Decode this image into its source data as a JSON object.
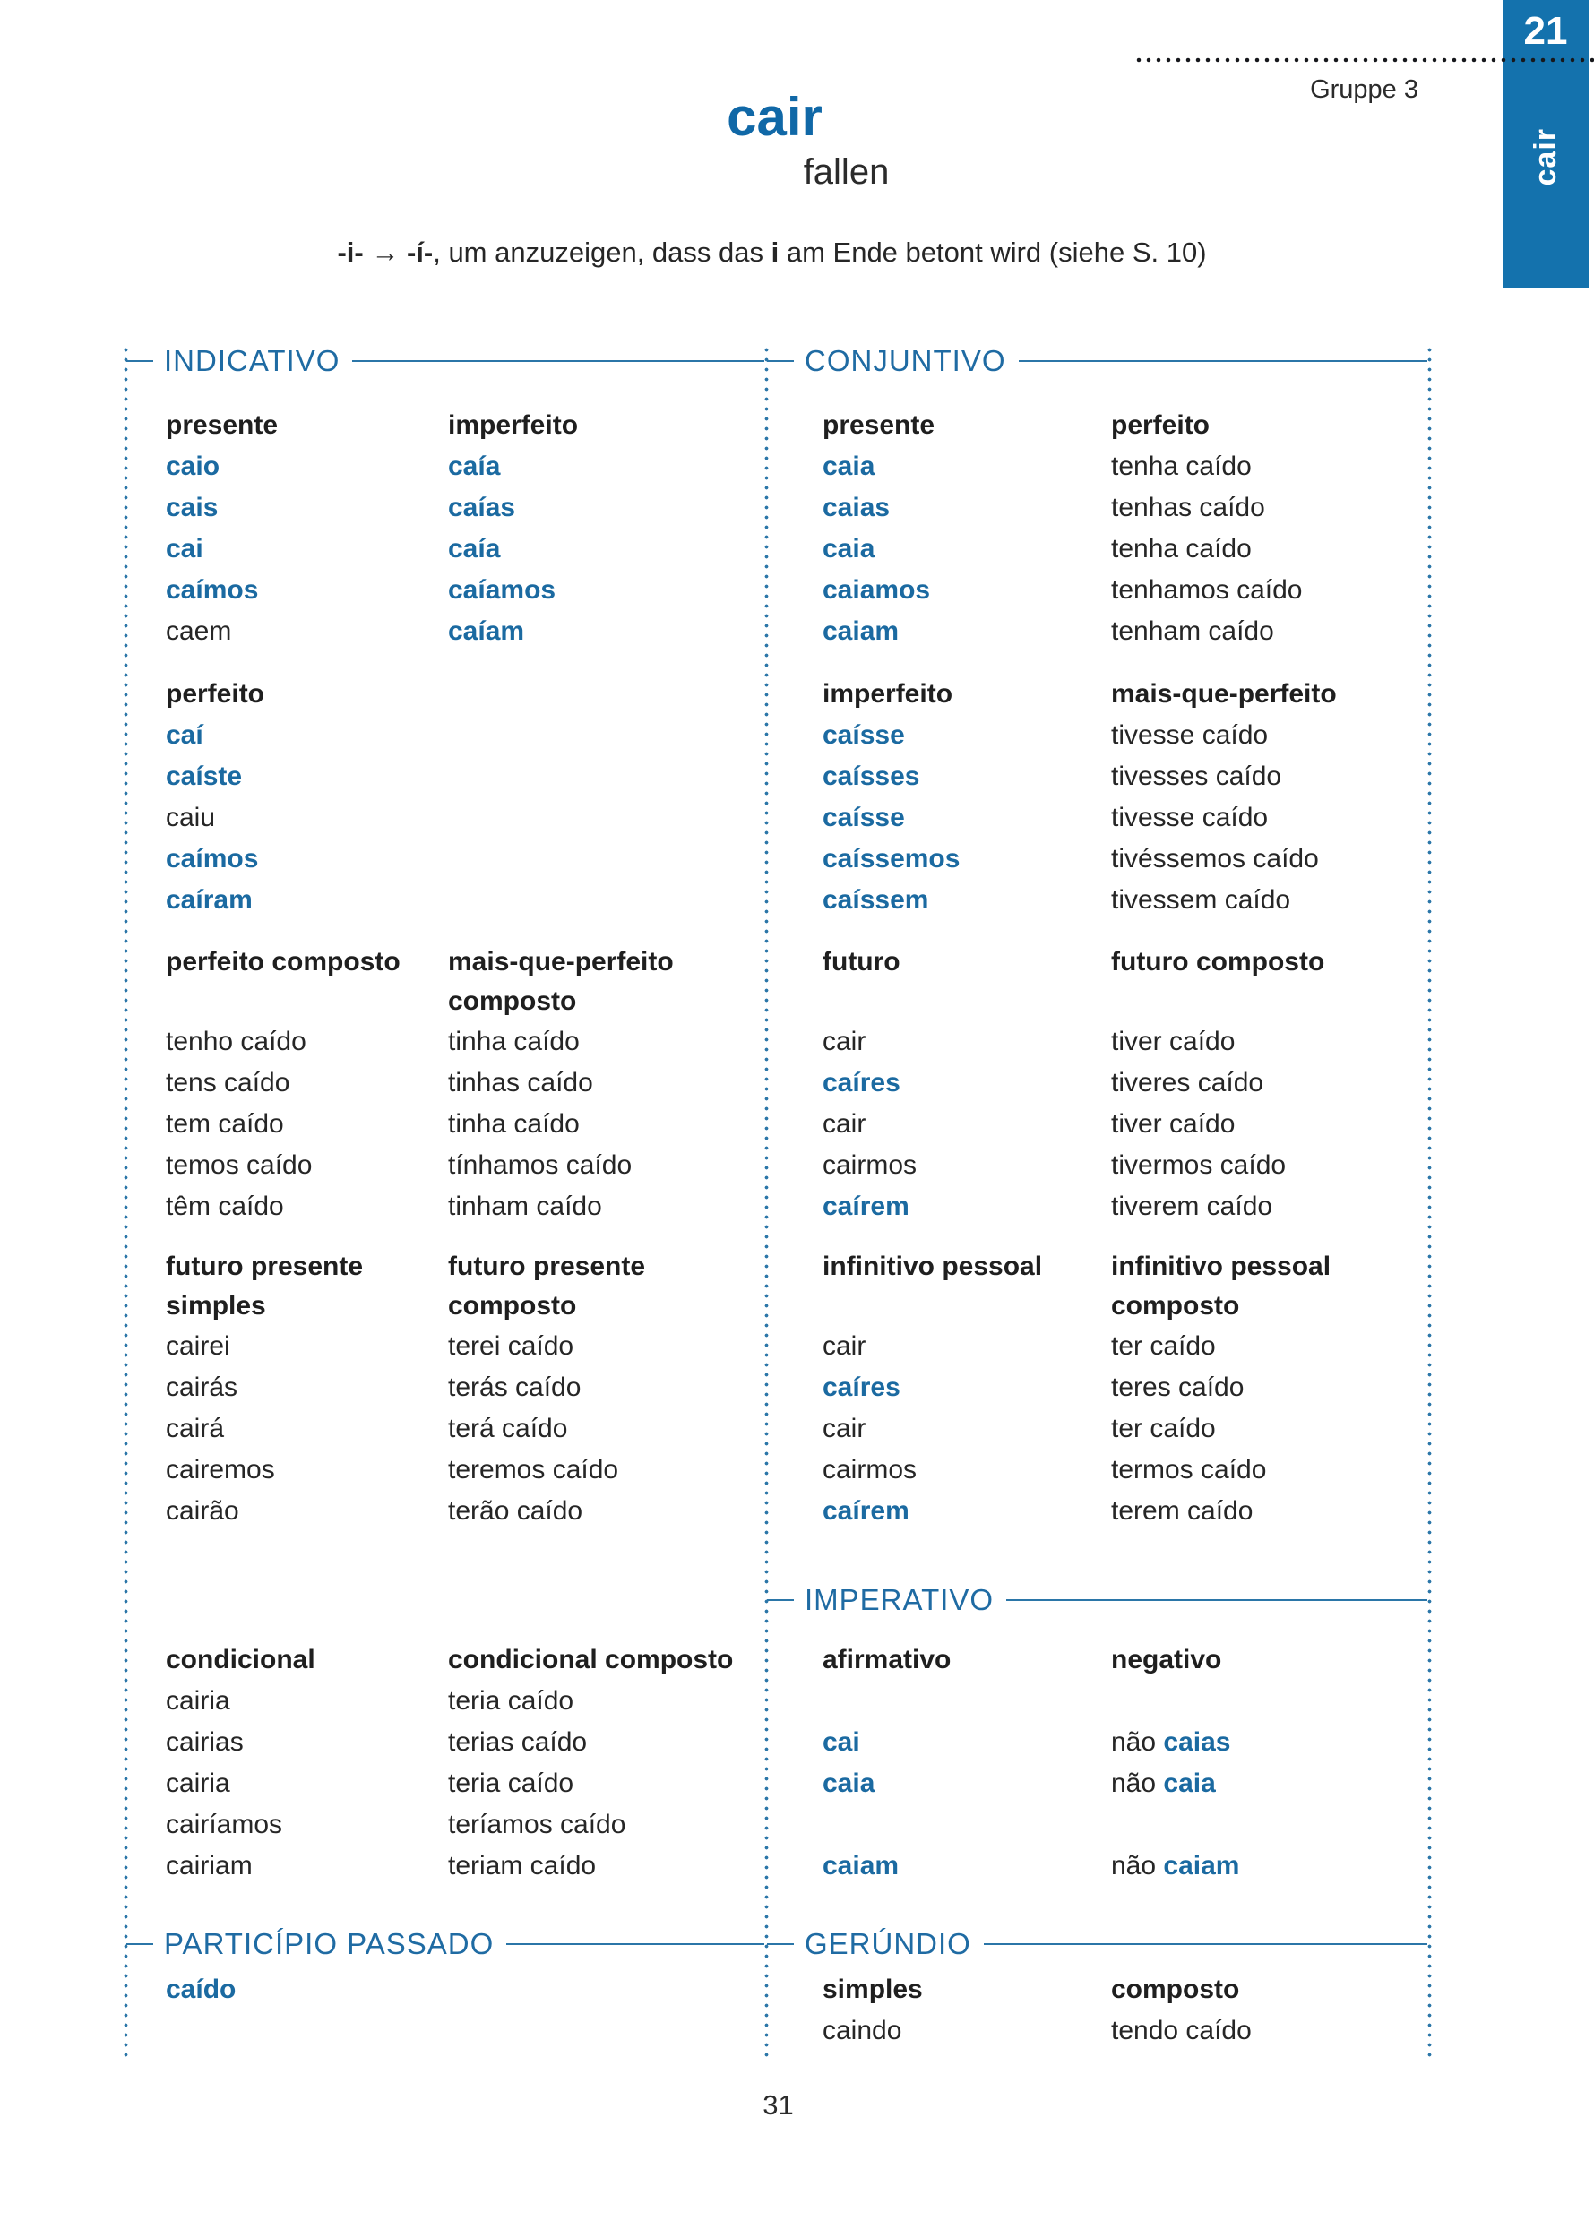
{
  "colors": {
    "accent_blue": "#1472AD",
    "verb_blue": "#1B6AA1",
    "rule_blue": "#2B76A8",
    "text_black": "#262626"
  },
  "page": {
    "tab_number": "21",
    "tab_verb": "cair",
    "group_label": "Gruppe 3",
    "title": "cair",
    "subtitle": "fallen",
    "note_segments": [
      {
        "t": "-i-",
        "b": true
      },
      {
        "t": " → ",
        "b": false
      },
      {
        "t": "-í-",
        "b": true
      },
      {
        "t": ", um anzuzeigen, dass das ",
        "b": false
      },
      {
        "t": "i",
        "b": true
      },
      {
        "t": " am Ende betont wird (siehe S. 10)",
        "b": false
      }
    ]
  },
  "sections": {
    "indicativo": "INDICATIVO",
    "conjuntivo": "CONJUNTIVO",
    "imperativo": "IMPERATIVO",
    "participio": "PARTICÍPIO PASSADO",
    "gerundio": "GERÚNDIO"
  },
  "bands": {
    "band1": {
      "cols": [
        {
          "header": [
            "presente"
          ],
          "items": [
            {
              "t": "caio",
              "hl": true
            },
            {
              "t": "cais",
              "hl": true
            },
            {
              "t": "cai",
              "hl": true
            },
            {
              "t": "caímos",
              "hl": true
            },
            "caem"
          ]
        },
        {
          "header": [
            "imperfeito"
          ],
          "items": [
            {
              "t": "caía",
              "hl": true
            },
            {
              "t": "caías",
              "hl": true
            },
            {
              "t": "caía",
              "hl": true
            },
            {
              "t": "caíamos",
              "hl": true
            },
            {
              "t": "caíam",
              "hl": true
            }
          ]
        },
        {
          "header": [
            "presente"
          ],
          "items": [
            {
              "t": "caia",
              "hl": true
            },
            {
              "t": "caias",
              "hl": true
            },
            {
              "t": "caia",
              "hl": true
            },
            {
              "t": "caiamos",
              "hl": true
            },
            {
              "t": "caiam",
              "hl": true
            }
          ]
        },
        {
          "header": [
            "perfeito"
          ],
          "items": [
            "tenha caído",
            "tenhas caído",
            "tenha caído",
            "tenhamos caído",
            "tenham caído"
          ]
        }
      ]
    },
    "band2": {
      "cols": [
        {
          "header": [
            "perfeito"
          ],
          "items": [
            {
              "t": "caí",
              "hl": true
            },
            {
              "t": "caíste",
              "hl": true
            },
            "caiu",
            {
              "t": "caímos",
              "hl": true
            },
            {
              "t": "caíram",
              "hl": true
            }
          ]
        },
        {
          "header": [
            "imperfeito"
          ],
          "items": [
            {
              "t": "caísse",
              "hl": true
            },
            {
              "t": "caísses",
              "hl": true
            },
            {
              "t": "caísse",
              "hl": true
            },
            {
              "t": "caíssemos",
              "hl": true
            },
            {
              "t": "caíssem",
              "hl": true
            }
          ]
        },
        {
          "header": [
            "mais-que-perfeito"
          ],
          "items": [
            "tivesse caído",
            "tivesses caído",
            "tivesse caído",
            "tivéssemos caído",
            "tivessem caído"
          ]
        }
      ]
    },
    "band3": {
      "cols": [
        {
          "header": [
            "perfeito composto"
          ],
          "items": [
            "tenho caído",
            "tens caído",
            "tem caído",
            "temos caído",
            "têm caído"
          ]
        },
        {
          "header": [
            "mais-que-perfeito",
            "composto"
          ],
          "items": [
            "tinha caído",
            "tinhas caído",
            "tinha caído",
            "tínhamos caído",
            "tinham caído"
          ]
        },
        {
          "header": [
            "futuro"
          ],
          "items": [
            "cair",
            {
              "t": "caíres",
              "hl": true
            },
            "cair",
            "cairmos",
            {
              "t": "caírem",
              "hl": true
            }
          ]
        },
        {
          "header": [
            "futuro composto"
          ],
          "items": [
            "tiver caído",
            "tiveres caído",
            "tiver caído",
            "tivermos caído",
            "tiverem caído"
          ]
        }
      ]
    },
    "band4": {
      "cols": [
        {
          "header": [
            "futuro presente",
            "simples"
          ],
          "items": [
            "cairei",
            "cairás",
            "cairá",
            "cairemos",
            "cairão"
          ]
        },
        {
          "header": [
            "futuro presente",
            "composto"
          ],
          "items": [
            "terei caído",
            "terás caído",
            "terá caído",
            "teremos caído",
            "terão caído"
          ]
        },
        {
          "header": [
            "infinitivo pessoal"
          ],
          "items": [
            "cair",
            {
              "t": "caíres",
              "hl": true
            },
            "cair",
            "cairmos",
            {
              "t": "caírem",
              "hl": true
            }
          ]
        },
        {
          "header": [
            "infinitivo pessoal",
            "composto"
          ],
          "items": [
            "ter caído",
            "teres caído",
            "ter caído",
            "termos caído",
            "terem caído"
          ]
        }
      ]
    },
    "band5": {
      "cols": [
        {
          "header": [
            "condicional"
          ],
          "items": [
            "cairia",
            "cairias",
            "cairia",
            "cairíamos",
            "cairiam"
          ]
        },
        {
          "header": [
            "condicional composto"
          ],
          "items": [
            "teria caído",
            "terias caído",
            "teria caído",
            "teríamos caído",
            "teriam caído"
          ]
        },
        {
          "header": [
            "afirmativo"
          ],
          "items": [
            null,
            {
              "t": "cai",
              "hl": true
            },
            {
              "t": "caia",
              "hl": true
            },
            null,
            {
              "t": "caiam",
              "hl": true
            }
          ]
        },
        {
          "header": [
            "negativo"
          ],
          "items": [
            null,
            {
              "seg": [
                {
                  "t": "não ",
                  "hl": false
                },
                {
                  "t": "caias",
                  "hl": true
                }
              ]
            },
            {
              "seg": [
                {
                  "t": "não ",
                  "hl": false
                },
                {
                  "t": "caia",
                  "hl": true
                }
              ]
            },
            null,
            {
              "seg": [
                {
                  "t": "não ",
                  "hl": false
                },
                {
                  "t": "caiam",
                  "hl": true
                }
              ]
            }
          ]
        }
      ]
    },
    "band6": {
      "cols": [
        {
          "items": [
            {
              "t": "caído",
              "hl": true
            }
          ]
        },
        {
          "header": [
            "simples"
          ],
          "items": [
            "caindo"
          ]
        },
        {
          "header": [
            "composto"
          ],
          "items": [
            "tendo caído"
          ]
        }
      ]
    }
  },
  "footer": {
    "page_number": "31"
  }
}
